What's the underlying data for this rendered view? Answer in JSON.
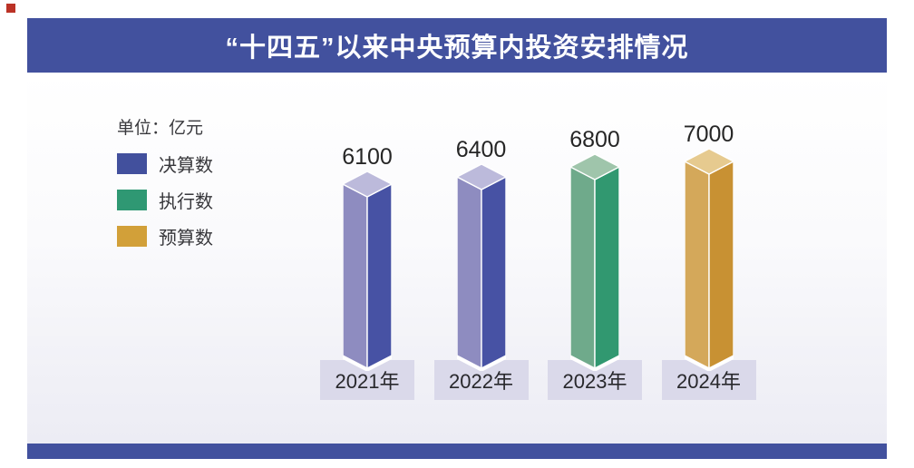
{
  "page": {
    "title": "“十四五”以来中央预算内投资安排情况"
  },
  "unit_label": "单位：亿元",
  "legend": {
    "items": [
      {
        "label": "决算数",
        "color": "#42509D"
      },
      {
        "label": "执行数",
        "color": "#2F9873"
      },
      {
        "label": "预算数",
        "color": "#D2A039"
      }
    ]
  },
  "theme": {
    "banner_color": "#42519E",
    "footer_color": "#42519E",
    "marker_color": "#BB3226",
    "plate_color": "#DAD9EA"
  },
  "chart_data": {
    "type": "bar",
    "title": "“十四五”以来中央预算内投资安排情况",
    "unit": "亿元",
    "categories": [
      "2021年",
      "2022年",
      "2023年",
      "2024年"
    ],
    "values": [
      6100,
      6400,
      6800,
      7000
    ],
    "bars": [
      {
        "category": "2021年",
        "value": 6100,
        "series": "决算数"
      },
      {
        "category": "2022年",
        "value": 6400,
        "series": "决算数"
      },
      {
        "category": "2023年",
        "value": 6800,
        "series": "执行数"
      },
      {
        "category": "2024年",
        "value": 7000,
        "series": "预算数"
      }
    ],
    "series_colors": {
      "决算数": {
        "top": "#BCBADB",
        "left": "#8E8CC0",
        "right": "#4752A4"
      },
      "执行数": {
        "top": "#9FC5AB",
        "left": "#6FAA8B",
        "right": "#319870"
      },
      "预算数": {
        "top": "#E6CA8F",
        "left": "#D4A85A",
        "right": "#C89133"
      }
    },
    "legend_entries": [
      "决算数",
      "执行数",
      "预算数"
    ],
    "ylim": [
      0,
      7000
    ],
    "grid": false,
    "legend_position": "left",
    "bar_style": "3d-pillar"
  }
}
